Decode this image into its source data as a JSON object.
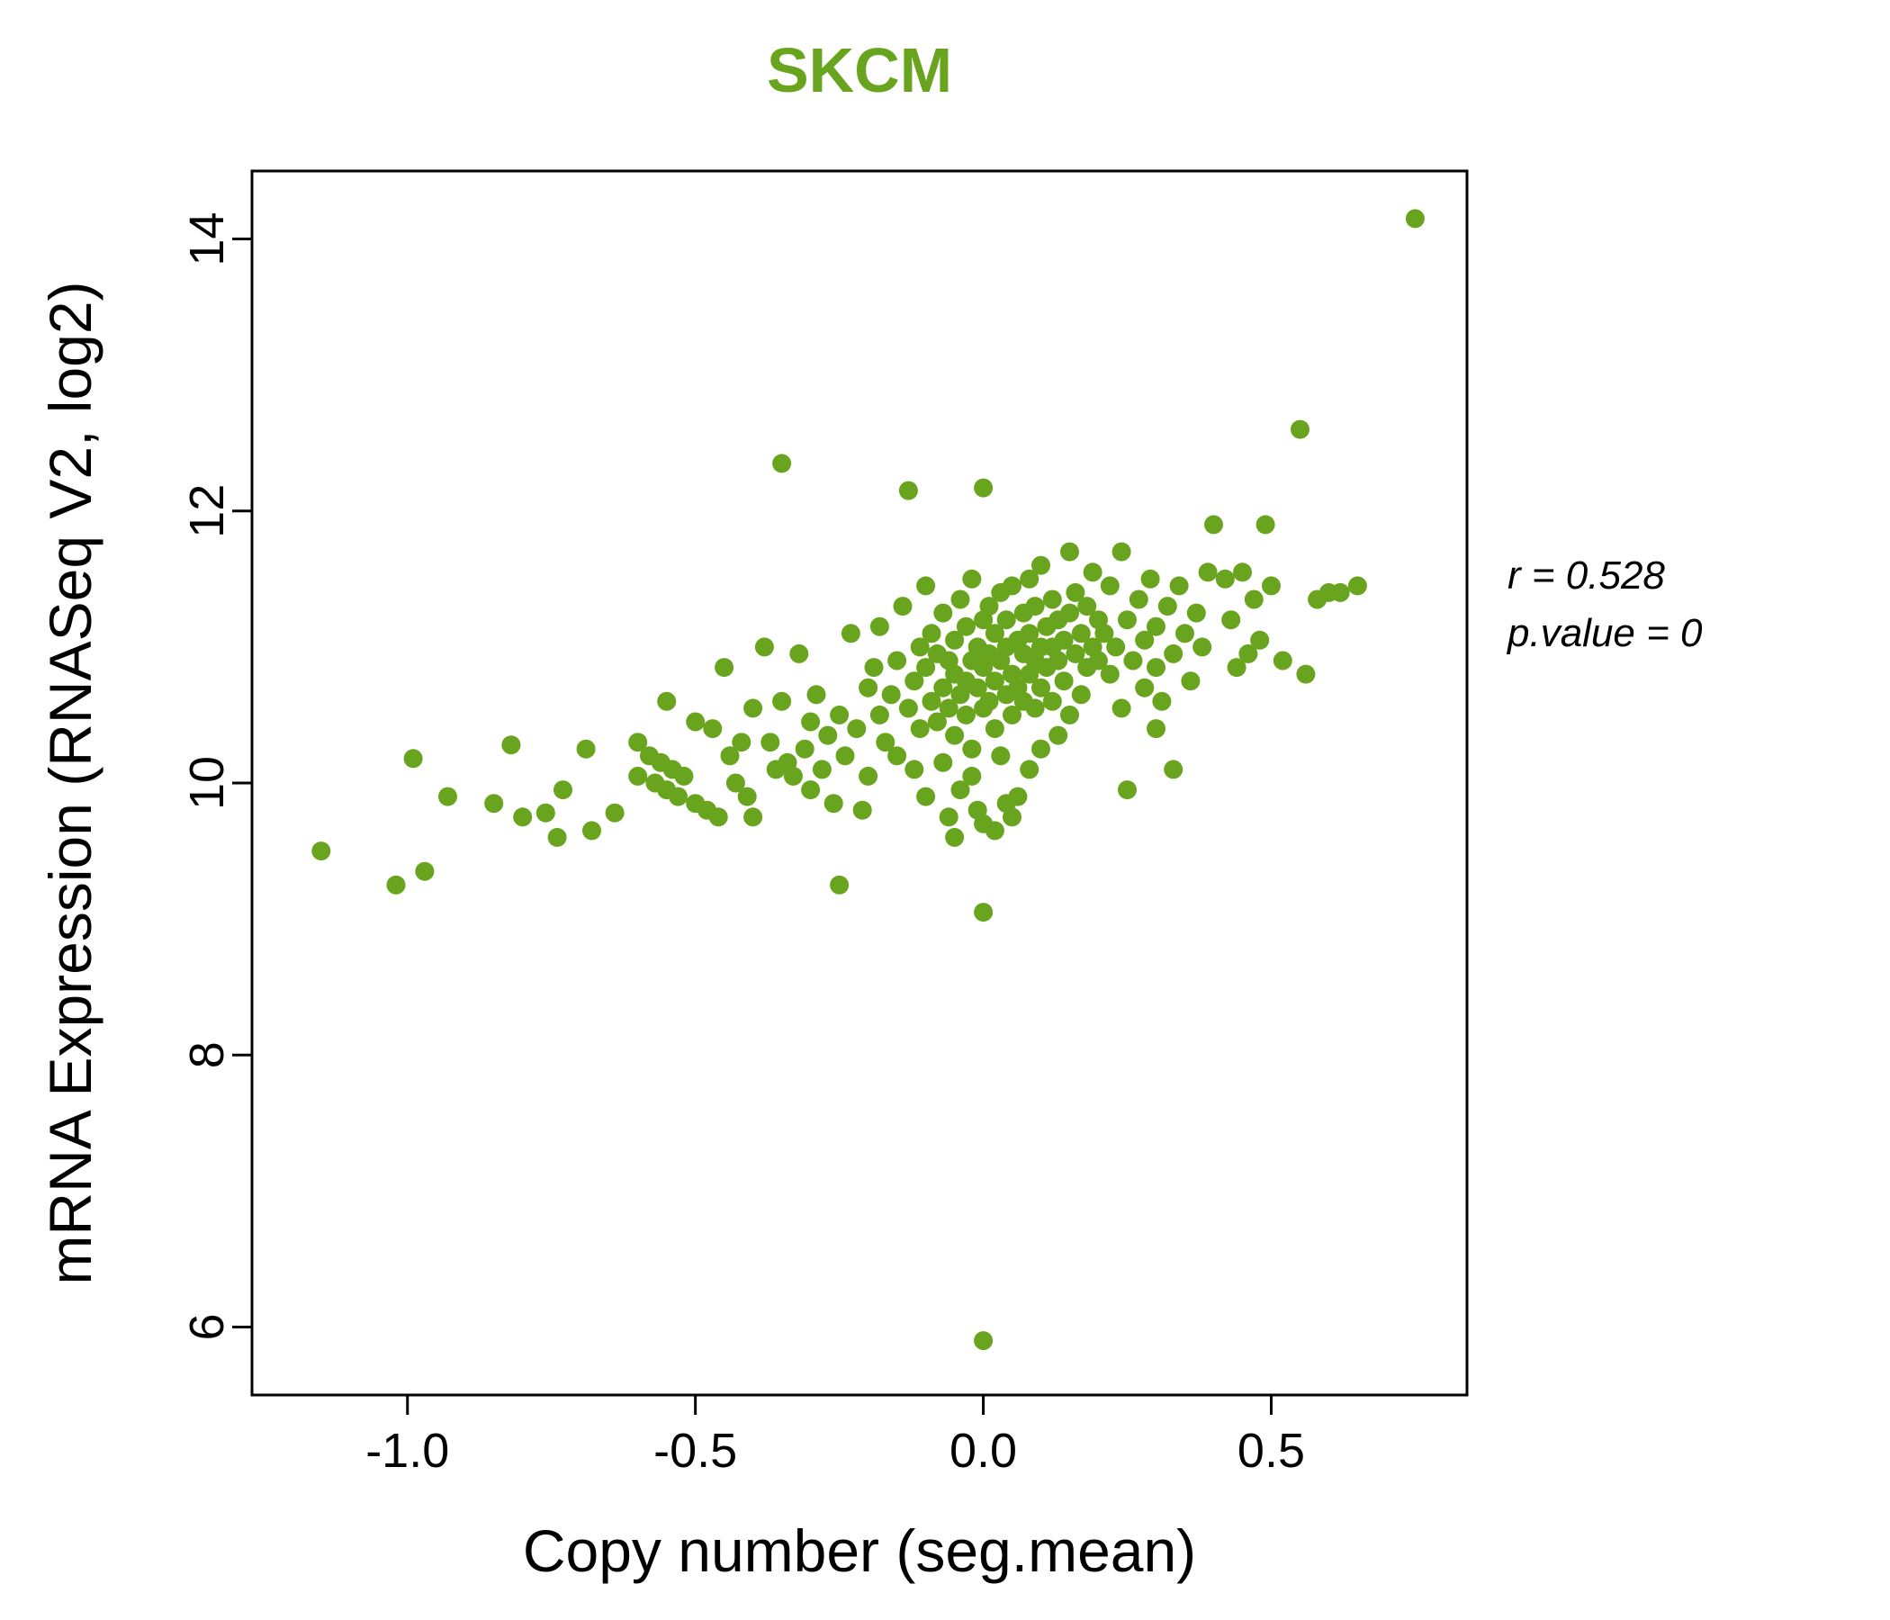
{
  "title": "SKCM",
  "x_axis_label": "Copy number (seg.mean)",
  "y_axis_label": "mRNA Expression (RNASeq V2, log2)",
  "annotation": {
    "line1": "r = 0.528",
    "line2": "p.value = 0"
  },
  "chart_data": {
    "type": "scatter",
    "title": "SKCM",
    "xlabel": "Copy number (seg.mean)",
    "ylabel": "mRNA Expression (RNASeq V2, log2)",
    "xlim": [
      -1.27,
      0.84
    ],
    "ylim": [
      5.5,
      14.5
    ],
    "xticks": [
      -1.0,
      -0.5,
      0.0,
      0.5
    ],
    "xtick_labels": [
      "-1.0",
      "-0.5",
      "0.0",
      "0.5"
    ],
    "yticks": [
      6,
      8,
      10,
      12,
      14
    ],
    "ytick_labels": [
      "6",
      "8",
      "10",
      "12",
      "14"
    ],
    "grid": false,
    "legend": "none",
    "point_color": "#69a41e",
    "title_color": "#69a41e",
    "annotation_text": [
      "r = 0.528",
      "p.value = 0"
    ],
    "points": [
      [
        -1.15,
        9.5
      ],
      [
        -1.02,
        9.25
      ],
      [
        -0.97,
        9.35
      ],
      [
        -0.99,
        10.18
      ],
      [
        -0.93,
        9.9
      ],
      [
        -0.85,
        9.85
      ],
      [
        -0.82,
        10.28
      ],
      [
        -0.8,
        9.75
      ],
      [
        -0.76,
        9.78
      ],
      [
        -0.74,
        9.6
      ],
      [
        -0.73,
        9.95
      ],
      [
        -0.69,
        10.25
      ],
      [
        -0.68,
        9.65
      ],
      [
        -0.64,
        9.78
      ],
      [
        -0.6,
        10.3
      ],
      [
        -0.6,
        10.05
      ],
      [
        -0.58,
        10.2
      ],
      [
        -0.57,
        10.0
      ],
      [
        -0.56,
        10.15
      ],
      [
        -0.55,
        10.6
      ],
      [
        -0.55,
        9.95
      ],
      [
        -0.54,
        10.1
      ],
      [
        -0.53,
        9.9
      ],
      [
        -0.52,
        10.05
      ],
      [
        -0.5,
        10.45
      ],
      [
        -0.5,
        9.85
      ],
      [
        -0.48,
        9.8
      ],
      [
        -0.47,
        10.4
      ],
      [
        -0.46,
        9.75
      ],
      [
        -0.45,
        10.85
      ],
      [
        -0.44,
        10.2
      ],
      [
        -0.43,
        10.0
      ],
      [
        -0.42,
        10.3
      ],
      [
        -0.41,
        9.9
      ],
      [
        -0.4,
        10.55
      ],
      [
        -0.4,
        9.75
      ],
      [
        -0.38,
        11.0
      ],
      [
        -0.37,
        10.3
      ],
      [
        -0.36,
        10.1
      ],
      [
        -0.35,
        12.35
      ],
      [
        -0.35,
        10.6
      ],
      [
        -0.34,
        10.15
      ],
      [
        -0.33,
        10.05
      ],
      [
        -0.32,
        10.95
      ],
      [
        -0.31,
        10.25
      ],
      [
        -0.3,
        10.45
      ],
      [
        -0.3,
        9.95
      ],
      [
        -0.29,
        10.65
      ],
      [
        -0.28,
        10.1
      ],
      [
        -0.27,
        10.35
      ],
      [
        -0.26,
        9.85
      ],
      [
        -0.25,
        10.5
      ],
      [
        -0.25,
        9.25
      ],
      [
        -0.24,
        10.2
      ],
      [
        -0.23,
        11.1
      ],
      [
        -0.22,
        10.4
      ],
      [
        -0.21,
        9.8
      ],
      [
        -0.2,
        10.7
      ],
      [
        -0.2,
        10.05
      ],
      [
        -0.19,
        10.85
      ],
      [
        -0.18,
        10.5
      ],
      [
        -0.18,
        11.15
      ],
      [
        -0.17,
        10.3
      ],
      [
        -0.16,
        10.65
      ],
      [
        -0.15,
        10.9
      ],
      [
        -0.15,
        10.2
      ],
      [
        -0.14,
        11.3
      ],
      [
        -0.13,
        12.15
      ],
      [
        -0.13,
        10.55
      ],
      [
        -0.12,
        10.75
      ],
      [
        -0.12,
        10.1
      ],
      [
        -0.11,
        11.0
      ],
      [
        -0.11,
        10.4
      ],
      [
        -0.1,
        10.85
      ],
      [
        -0.1,
        9.9
      ],
      [
        -0.1,
        11.45
      ],
      [
        -0.09,
        10.6
      ],
      [
        -0.09,
        11.1
      ],
      [
        -0.08,
        10.45
      ],
      [
        -0.08,
        10.95
      ],
      [
        -0.07,
        10.7
      ],
      [
        -0.07,
        11.25
      ],
      [
        -0.07,
        10.15
      ],
      [
        -0.06,
        10.55
      ],
      [
        -0.06,
        10.9
      ],
      [
        -0.06,
        9.75
      ],
      [
        -0.05,
        10.8
      ],
      [
        -0.05,
        11.05
      ],
      [
        -0.05,
        10.35
      ],
      [
        -0.05,
        9.6
      ],
      [
        -0.04,
        10.65
      ],
      [
        -0.04,
        11.35
      ],
      [
        -0.04,
        9.95
      ],
      [
        -0.03,
        10.75
      ],
      [
        -0.03,
        11.15
      ],
      [
        -0.03,
        10.5
      ],
      [
        -0.02,
        10.9
      ],
      [
        -0.02,
        10.25
      ],
      [
        -0.02,
        11.5
      ],
      [
        -0.02,
        10.05
      ],
      [
        -0.01,
        10.7
      ],
      [
        -0.01,
        11.0
      ],
      [
        -0.01,
        9.8
      ],
      [
        0.0,
        10.85
      ],
      [
        0.0,
        11.2
      ],
      [
        0.0,
        10.55
      ],
      [
        0.0,
        9.7
      ],
      [
        0.0,
        5.9
      ],
      [
        0.0,
        9.05
      ],
      [
        0.0,
        12.17
      ],
      [
        0.01,
        10.95
      ],
      [
        0.01,
        10.6
      ],
      [
        0.01,
        11.3
      ],
      [
        0.02,
        10.75
      ],
      [
        0.02,
        11.1
      ],
      [
        0.02,
        10.4
      ],
      [
        0.02,
        9.65
      ],
      [
        0.03,
        10.9
      ],
      [
        0.03,
        11.4
      ],
      [
        0.03,
        10.2
      ],
      [
        0.04,
        11.0
      ],
      [
        0.04,
        10.65
      ],
      [
        0.04,
        11.2
      ],
      [
        0.04,
        9.85
      ],
      [
        0.05,
        10.8
      ],
      [
        0.05,
        11.45
      ],
      [
        0.05,
        10.5
      ],
      [
        0.05,
        9.75
      ],
      [
        0.06,
        11.05
      ],
      [
        0.06,
        10.7
      ],
      [
        0.06,
        9.9
      ],
      [
        0.07,
        10.95
      ],
      [
        0.07,
        11.25
      ],
      [
        0.07,
        10.6
      ],
      [
        0.08,
        11.1
      ],
      [
        0.08,
        10.8
      ],
      [
        0.08,
        11.5
      ],
      [
        0.08,
        10.1
      ],
      [
        0.09,
        10.9
      ],
      [
        0.09,
        11.3
      ],
      [
        0.09,
        10.55
      ],
      [
        0.1,
        11.0
      ],
      [
        0.1,
        10.7
      ],
      [
        0.1,
        11.6
      ],
      [
        0.1,
        10.25
      ],
      [
        0.11,
        10.85
      ],
      [
        0.11,
        11.15
      ],
      [
        0.12,
        11.0
      ],
      [
        0.12,
        10.6
      ],
      [
        0.12,
        11.35
      ],
      [
        0.13,
        10.9
      ],
      [
        0.13,
        11.2
      ],
      [
        0.13,
        10.35
      ],
      [
        0.14,
        11.05
      ],
      [
        0.14,
        10.75
      ],
      [
        0.15,
        11.25
      ],
      [
        0.15,
        10.5
      ],
      [
        0.15,
        11.7
      ],
      [
        0.16,
        10.95
      ],
      [
        0.16,
        11.4
      ],
      [
        0.17,
        11.1
      ],
      [
        0.17,
        10.65
      ],
      [
        0.18,
        11.3
      ],
      [
        0.18,
        10.85
      ],
      [
        0.19,
        11.0
      ],
      [
        0.19,
        11.55
      ],
      [
        0.2,
        10.9
      ],
      [
        0.2,
        11.2
      ],
      [
        0.21,
        11.1
      ],
      [
        0.22,
        10.8
      ],
      [
        0.22,
        11.45
      ],
      [
        0.23,
        11.0
      ],
      [
        0.24,
        10.55
      ],
      [
        0.24,
        11.7
      ],
      [
        0.25,
        11.2
      ],
      [
        0.25,
        9.95
      ],
      [
        0.26,
        10.9
      ],
      [
        0.27,
        11.35
      ],
      [
        0.28,
        10.7
      ],
      [
        0.28,
        11.05
      ],
      [
        0.29,
        11.5
      ],
      [
        0.3,
        10.85
      ],
      [
        0.3,
        11.15
      ],
      [
        0.3,
        10.4
      ],
      [
        0.31,
        10.6
      ],
      [
        0.32,
        11.3
      ],
      [
        0.33,
        10.95
      ],
      [
        0.33,
        10.1
      ],
      [
        0.34,
        11.45
      ],
      [
        0.35,
        11.1
      ],
      [
        0.36,
        10.75
      ],
      [
        0.37,
        11.25
      ],
      [
        0.38,
        11.0
      ],
      [
        0.39,
        11.55
      ],
      [
        0.4,
        11.9
      ],
      [
        0.42,
        11.5
      ],
      [
        0.43,
        11.2
      ],
      [
        0.44,
        10.85
      ],
      [
        0.45,
        11.55
      ],
      [
        0.46,
        10.95
      ],
      [
        0.47,
        11.35
      ],
      [
        0.48,
        11.05
      ],
      [
        0.49,
        11.9
      ],
      [
        0.5,
        11.45
      ],
      [
        0.52,
        10.9
      ],
      [
        0.55,
        12.6
      ],
      [
        0.56,
        10.8
      ],
      [
        0.58,
        11.35
      ],
      [
        0.6,
        11.4
      ],
      [
        0.62,
        11.4
      ],
      [
        0.65,
        11.45
      ],
      [
        0.75,
        14.15
      ]
    ]
  }
}
